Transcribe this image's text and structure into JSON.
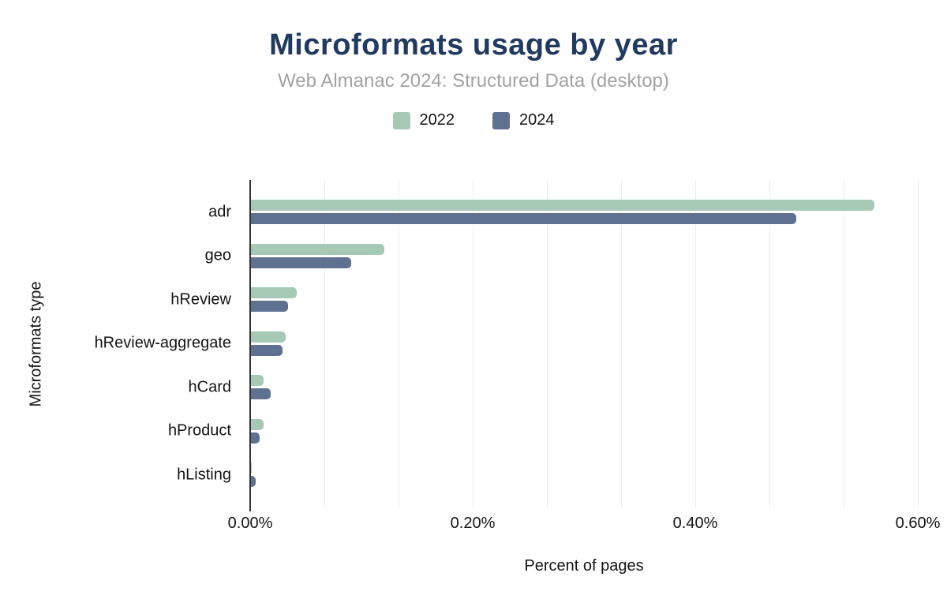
{
  "chart_data": {
    "type": "bar",
    "orientation": "horizontal",
    "title": "Microformats usage by year",
    "subtitle": "Web Almanac 2024: Structured Data (desktop)",
    "xlabel": "Percent of pages",
    "ylabel": "Microformats type",
    "categories": [
      "adr",
      "geo",
      "hReview",
      "hReview-aggregate",
      "hCard",
      "hProduct",
      "hListing"
    ],
    "series": [
      {
        "name": "2022",
        "color": "#a6c9b5",
        "values": [
          0.56,
          0.12,
          0.041,
          0.031,
          0.011,
          0.011,
          0.001
        ]
      },
      {
        "name": "2024",
        "color": "#5f7190",
        "values": [
          0.49,
          0.09,
          0.033,
          0.028,
          0.018,
          0.008,
          0.004
        ]
      }
    ],
    "xlim": [
      0,
      0.6
    ],
    "xticks": [
      {
        "value": 0.0,
        "label": "0.00%"
      },
      {
        "value": 0.2,
        "label": "0.20%"
      },
      {
        "value": 0.4,
        "label": "0.40%"
      },
      {
        "value": 0.6,
        "label": "0.60%"
      }
    ],
    "grid": {
      "show": true,
      "divisions": 9,
      "color": "#ececec"
    },
    "legend_position": "top",
    "value_unit": "percent of pages"
  },
  "styles": {
    "title_color": "#213a60",
    "subtitle_color": "#a2a2a2",
    "axis_color": "#333333",
    "text_color": "#131313",
    "background": "#ffffff"
  }
}
